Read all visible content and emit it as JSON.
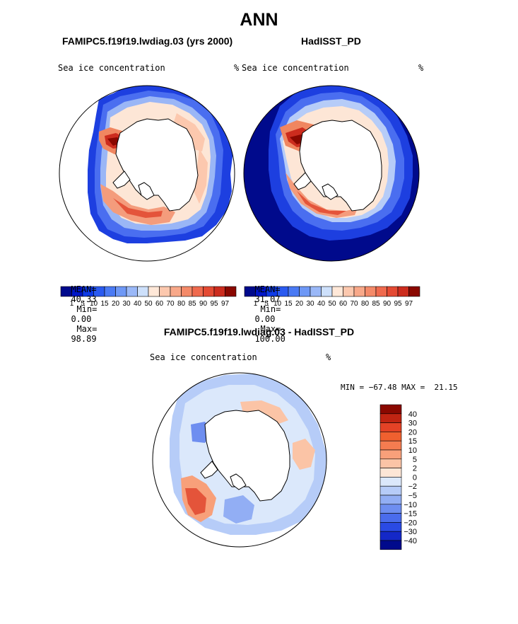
{
  "figure": {
    "title": "ANN",
    "left_panel": {
      "title": "FAMIPC5.f19f19.lwdiag.03 (yrs 2000)",
      "variable": "Sea ice concentration",
      "units": "%",
      "mean_label": "MEAN=",
      "mean": "40.33",
      "min_label": "Min=",
      "min": "0.00",
      "max_label": "Max=",
      "max": "98.89"
    },
    "right_panel": {
      "title": "HadISST_PD",
      "variable": "Sea ice concentration",
      "units": "%",
      "mean_label": "MEAN=",
      "mean": "31.07",
      "min_label": "Min=",
      "min": "0.00",
      "max_label": "Max=",
      "max": "100.00"
    },
    "colorbar_labels": [
      "1",
      "5",
      "10",
      "15",
      "20",
      "30",
      "40",
      "50",
      "60",
      "70",
      "80",
      "85",
      "90",
      "95",
      "97"
    ],
    "colorbar_colors": [
      "#000a8c",
      "#0016c8",
      "#0e3ae6",
      "#2a5af0",
      "#4a7af4",
      "#6e98f6",
      "#9ab8f8",
      "#cde0fb",
      "#ffe8d8",
      "#fcc8ae",
      "#f8a889",
      "#f48a69",
      "#ef6a4e",
      "#e44a33",
      "#cc2c1e",
      "#8a0800"
    ],
    "diff_panel": {
      "title": "FAMIPC5.f19f19.lwdiag.03 - HadISST_PD",
      "variable": "Sea ice concentration",
      "units": "%",
      "min_max": "MIN = −67.48 MAX =  21.15",
      "colorbar_labels": [
        "40",
        "30",
        "20",
        "15",
        "10",
        "5",
        "2",
        "0",
        "−2",
        "−5",
        "−10",
        "−15",
        "−20",
        "−30",
        "−40"
      ],
      "colorbar_colors": [
        "#8a0800",
        "#c02412",
        "#e44226",
        "#f0602f",
        "#f47c50",
        "#f8a07a",
        "#fbc4a6",
        "#fde6d6",
        "#dbe8fb",
        "#b6ccf8",
        "#92aef4",
        "#6e8ef0",
        "#4a6cec",
        "#2a4ae4",
        "#1428c8",
        "#000a8c"
      ]
    }
  }
}
